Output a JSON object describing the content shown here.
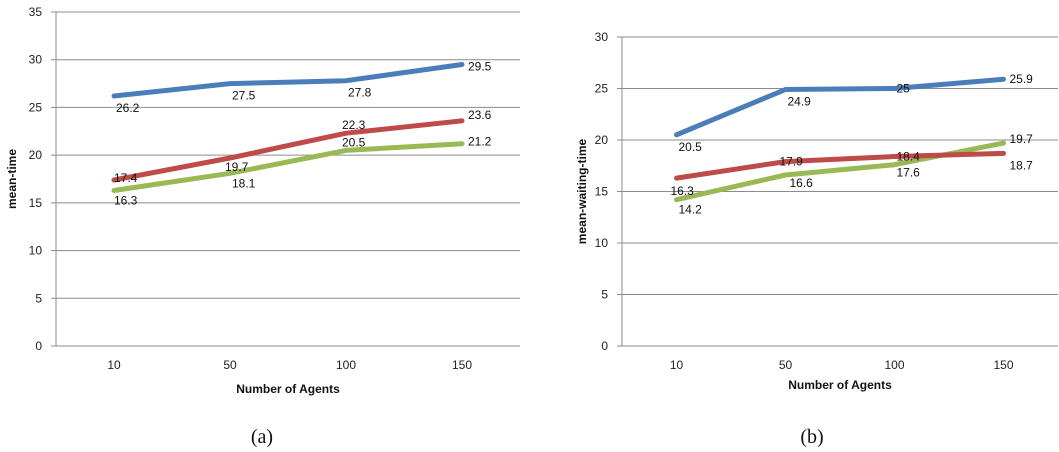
{
  "chart_data": [
    {
      "type": "line",
      "categories": [
        "10",
        "50",
        "100",
        "150"
      ],
      "xlabel": "Number of Agents",
      "ylabel": "mean-time",
      "ylim": [
        0,
        35
      ],
      "yticks": [
        0,
        5,
        10,
        15,
        20,
        25,
        30,
        35
      ],
      "grid": true,
      "series": [
        {
          "color": "#4a7ebb",
          "values": [
            26.2,
            27.5,
            27.8,
            29.5
          ]
        },
        {
          "color": "#be4b48",
          "values": [
            17.4,
            19.7,
            22.3,
            23.6
          ]
        },
        {
          "color": "#98b954",
          "values": [
            16.3,
            18.1,
            20.5,
            21.2
          ]
        }
      ],
      "caption": "(a)"
    },
    {
      "type": "line",
      "categories": [
        "10",
        "50",
        "100",
        "150"
      ],
      "xlabel": "Number of Agents",
      "ylabel": "mean-waiting-time",
      "ylim": [
        0,
        30
      ],
      "yticks": [
        0,
        5,
        10,
        15,
        20,
        25,
        30
      ],
      "grid": true,
      "series": [
        {
          "color": "#4a7ebb",
          "values": [
            20.5,
            24.9,
            25,
            25.9
          ]
        },
        {
          "color": "#be4b48",
          "values": [
            16.3,
            17.9,
            18.4,
            18.7
          ]
        },
        {
          "color": "#98b954",
          "values": [
            14.2,
            16.6,
            17.6,
            19.7
          ]
        }
      ],
      "caption": "(b)"
    }
  ]
}
